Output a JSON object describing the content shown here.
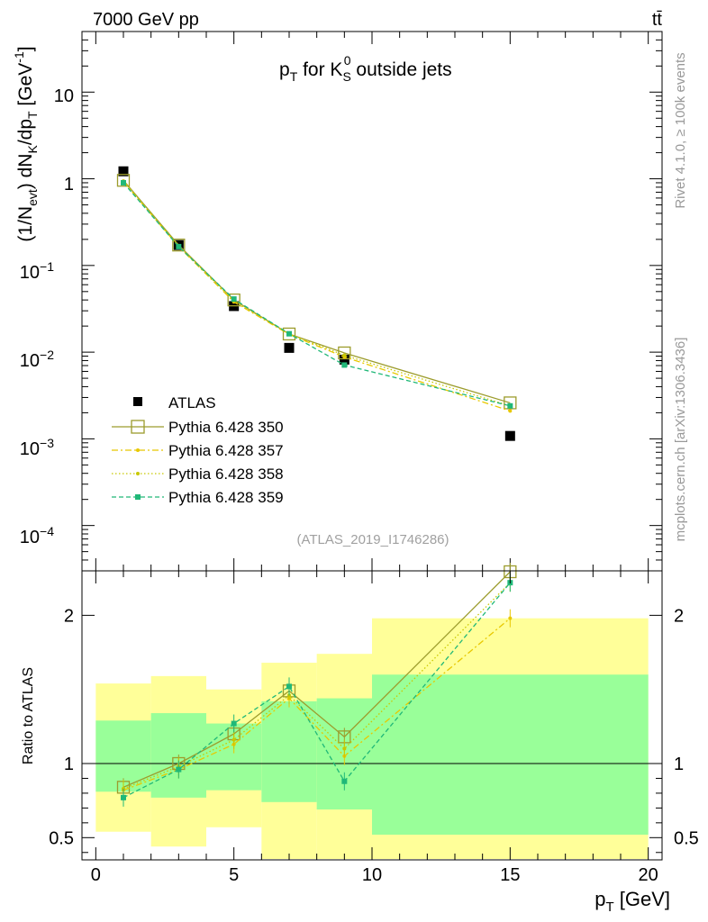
{
  "header": {
    "left": "7000 GeV pp",
    "right": "tt̄"
  },
  "side_labels": {
    "top": "Rivet 4.1.0, ≥ 100k events",
    "bottom": "mcplots.cern.ch [arXiv:1306.3436]"
  },
  "chart_data": [
    {
      "type": "scatter",
      "panel": "main",
      "title": "p_T for K_S^0 outside jets",
      "title_parts": {
        "p": "p",
        "T": "T",
        "for": " for K",
        "S": "S",
        "zero": "0",
        "rest": " outside jets"
      },
      "ylabel": "(1/N_evt) dN_K/dp_T [GeV^-1]",
      "ylabel_parts": {
        "a": "(1/N",
        "evt": "evt",
        "b": ") dN",
        "K": "K",
        "c": "/dp",
        "T": "T",
        "d": " [GeV",
        "exp": "-1",
        "e": "]"
      },
      "yscale": "log",
      "ylim": [
        3e-05,
        50
      ],
      "xlim": [
        -0.5,
        20.5
      ],
      "ytick_labels": {
        "t10": {
          "base": "10",
          "exp": ""
        },
        "t1": {
          "base": "1",
          "exp": ""
        },
        "tm1": {
          "base": "10",
          "exp": "−1"
        },
        "tm2": {
          "base": "10",
          "exp": "−2"
        },
        "tm3": {
          "base": "10",
          "exp": "−3"
        },
        "tm4": {
          "base": "10",
          "exp": "−4"
        }
      },
      "watermark": "(ATLAS_2019_I1746286)",
      "legend_position": "lower-left",
      "x": [
        1,
        3,
        5,
        7,
        9,
        15
      ],
      "series": [
        {
          "name": "ATLAS",
          "color": "#000000",
          "style": "data",
          "values": [
            1.22,
            0.172,
            0.034,
            0.0112,
            0.0082,
            0.00108
          ]
        },
        {
          "name": "Pythia 6.428 350",
          "color": "#9c9c2c",
          "style": "solid",
          "values": [
            0.96,
            0.172,
            0.04,
            0.0162,
            0.0098,
            0.0026
          ]
        },
        {
          "name": "Pythia 6.428 357",
          "color": "#e8c800",
          "style": "dashdot",
          "values": [
            0.93,
            0.165,
            0.038,
            0.016,
            0.0088,
            0.0021
          ]
        },
        {
          "name": "Pythia 6.428 358",
          "color": "#c8c800",
          "style": "dotted",
          "values": [
            0.94,
            0.168,
            0.039,
            0.0162,
            0.0092,
            0.0024
          ]
        },
        {
          "name": "Pythia 6.428 359",
          "color": "#20b878",
          "style": "dashed",
          "values": [
            0.9,
            0.165,
            0.041,
            0.0163,
            0.0071,
            0.0024
          ]
        }
      ]
    },
    {
      "type": "scatter",
      "panel": "ratio",
      "ylabel": "Ratio to ATLAS",
      "xlabel": "p_T [GeV]",
      "xlabel_parts": {
        "p": "p",
        "T": "T",
        "unit": " [GeV]"
      },
      "xlim": [
        -0.5,
        20.5
      ],
      "ylim": [
        0.35,
        2.3
      ],
      "xtick_labels": [
        "0",
        "5",
        "10",
        "15",
        "20"
      ],
      "xticks": [
        0,
        5,
        10,
        15,
        20
      ],
      "ytick_labels": [
        "0.5",
        "1",
        "2"
      ],
      "yticks": [
        0.5,
        1,
        2
      ],
      "reference": 1,
      "bands": [
        {
          "x0": 0,
          "x1": 2,
          "yellow": [
            0.54,
            1.54
          ],
          "green": [
            0.81,
            1.29
          ]
        },
        {
          "x0": 2,
          "x1": 4,
          "yellow": [
            0.44,
            1.59
          ],
          "green": [
            0.77,
            1.34
          ]
        },
        {
          "x0": 4,
          "x1": 6,
          "yellow": [
            0.57,
            1.5
          ],
          "green": [
            0.82,
            1.27
          ]
        },
        {
          "x0": 6,
          "x1": 8,
          "yellow": [
            0.3,
            1.68
          ],
          "green": [
            0.74,
            1.42
          ]
        },
        {
          "x0": 8,
          "x1": 10,
          "yellow": [
            0.3,
            1.74
          ],
          "green": [
            0.69,
            1.44
          ]
        },
        {
          "x0": 10,
          "x1": 20,
          "yellow": [
            0.3,
            1.98
          ],
          "green": [
            0.52,
            1.6
          ]
        }
      ],
      "x": [
        1,
        3,
        5,
        7,
        9,
        15
      ],
      "series": [
        {
          "name": "Pythia 6.428 350",
          "values": [
            0.84,
            1.0,
            1.2,
            1.49,
            1.18,
            2.3
          ]
        },
        {
          "name": "Pythia 6.428 357",
          "values": [
            0.82,
            0.96,
            1.13,
            1.44,
            1.05,
            1.98
          ]
        },
        {
          "name": "Pythia 6.428 358",
          "values": [
            0.83,
            0.98,
            1.16,
            1.46,
            1.1,
            2.22
          ]
        },
        {
          "name": "Pythia 6.428 359",
          "values": [
            0.77,
            0.96,
            1.27,
            1.52,
            0.88,
            2.22
          ]
        }
      ]
    }
  ]
}
